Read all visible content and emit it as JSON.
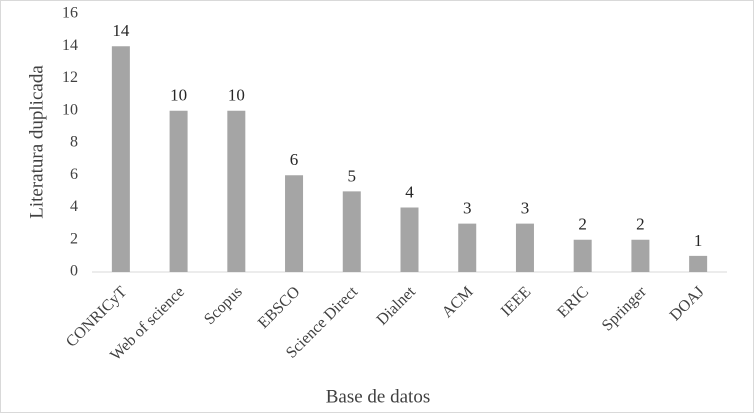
{
  "chart_data": {
    "type": "bar",
    "x_label": "Base de datos",
    "y_label": "Literatura duplicada",
    "categories": [
      "CONRICyT",
      "Web of science",
      "Scopus",
      "EBSCO",
      "Science Direct",
      "Dialnet",
      "ACM",
      "IEEE",
      "ERIC",
      "Springer",
      "DOAJ"
    ],
    "values": [
      14,
      10,
      10,
      6,
      5,
      4,
      3,
      3,
      2,
      2,
      1
    ],
    "color": "#a5a5a5",
    "ylim": [
      0,
      16
    ],
    "yticks": [
      0,
      2,
      4,
      6,
      8,
      10,
      12,
      14,
      16
    ],
    "grid": false,
    "data_labels": true
  }
}
